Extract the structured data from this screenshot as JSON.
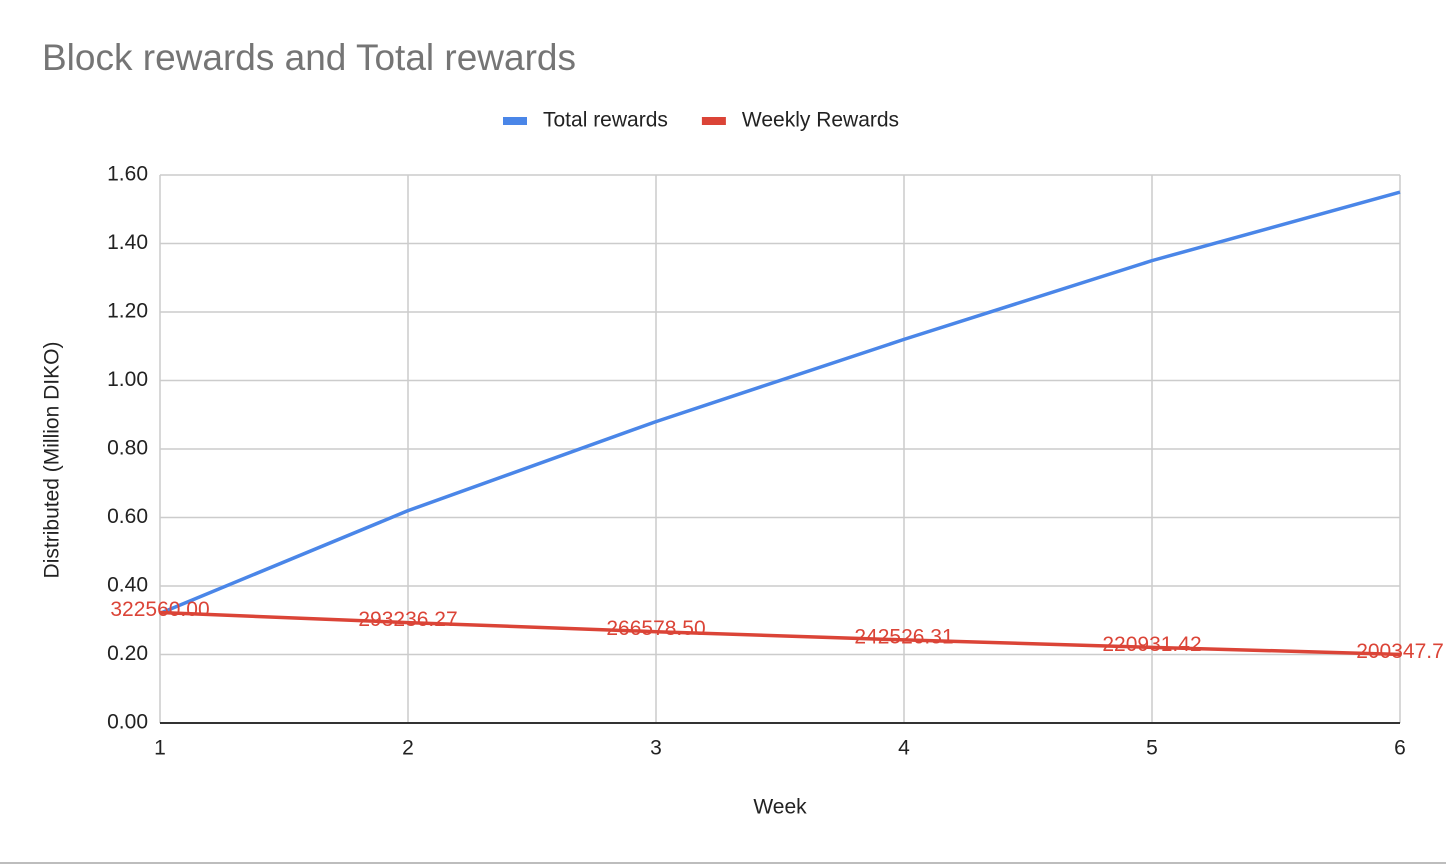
{
  "chart_data": {
    "type": "line",
    "title": "Block rewards and Total rewards",
    "x_label": "Week",
    "y_label": "Distributed (Million DIKO)",
    "x": [
      1,
      2,
      3,
      4,
      5,
      6
    ],
    "series": [
      {
        "name": "Total rewards",
        "color": "#4a86e8",
        "values": [
          0.32,
          0.62,
          0.88,
          1.12,
          1.35,
          1.55
        ]
      },
      {
        "name": "Weekly Rewards",
        "color": "#db4437",
        "values": [
          0.32256,
          0.29323627,
          0.2665785,
          0.24252631,
          0.22093142,
          0.2003477
        ],
        "value_labels": [
          "322560.00",
          "293236.27",
          "266578.50",
          "242526.31",
          "220931.42",
          "200347.7"
        ]
      }
    ],
    "xlim": [
      1,
      6
    ],
    "xticks": [
      1,
      2,
      3,
      4,
      5,
      6
    ],
    "ylim": [
      0,
      1.6
    ],
    "yticks": [
      {
        "value": 0,
        "label": "0.00"
      },
      {
        "value": 0.2,
        "label": "0.20"
      },
      {
        "value": 0.4,
        "label": "0.40"
      },
      {
        "value": 0.6,
        "label": "0.60"
      },
      {
        "value": 0.8,
        "label": "0.80"
      },
      {
        "value": 1.0,
        "label": "1.00"
      },
      {
        "value": 1.2,
        "label": "1.20"
      },
      {
        "value": 1.4,
        "label": "1.40"
      },
      {
        "value": 1.6,
        "label": "1.60"
      }
    ],
    "grid": true,
    "legend": "top"
  }
}
